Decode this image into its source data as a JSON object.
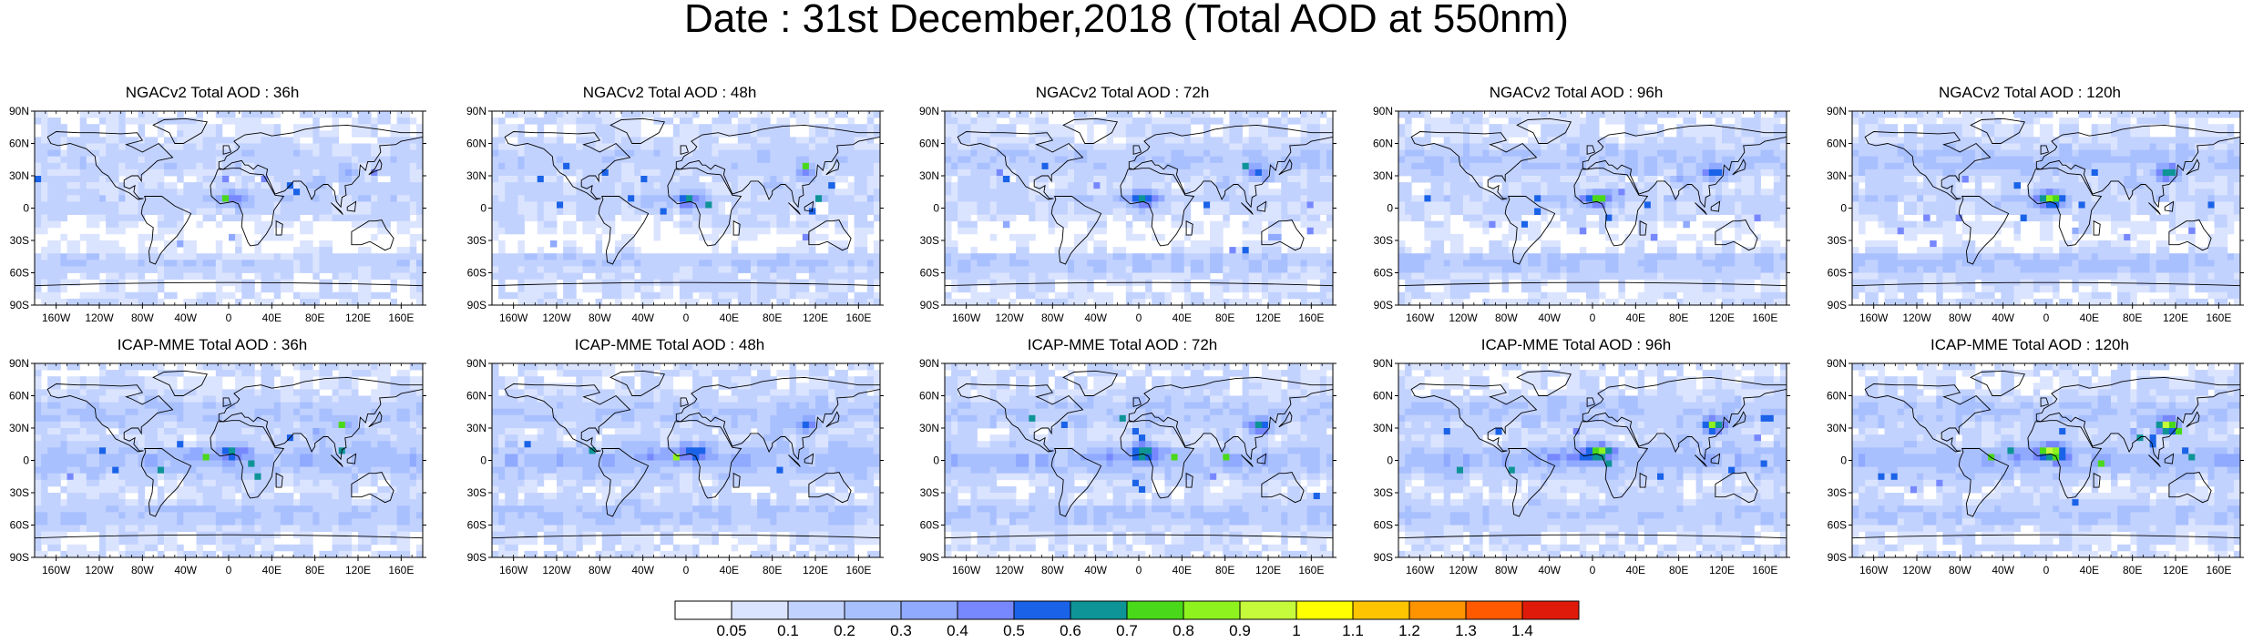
{
  "title": "Date : 31st December,2018 (Total AOD at 550nm)",
  "panels": [
    {
      "title": "NGACv2 Total AOD : 36h",
      "model": "NGACv2",
      "lead_hours": 36
    },
    {
      "title": "NGACv2 Total AOD : 48h",
      "model": "NGACv2",
      "lead_hours": 48
    },
    {
      "title": "NGACv2 Total AOD : 72h",
      "model": "NGACv2",
      "lead_hours": 72
    },
    {
      "title": "NGACv2 Total AOD : 96h",
      "model": "NGACv2",
      "lead_hours": 96
    },
    {
      "title": "NGACv2 Total AOD : 120h",
      "model": "NGACv2",
      "lead_hours": 120
    },
    {
      "title": "ICAP-MME Total AOD : 36h",
      "model": "ICAP-MME",
      "lead_hours": 36
    },
    {
      "title": "ICAP-MME Total AOD : 48h",
      "model": "ICAP-MME",
      "lead_hours": 48
    },
    {
      "title": "ICAP-MME Total AOD : 72h",
      "model": "ICAP-MME",
      "lead_hours": 72
    },
    {
      "title": "ICAP-MME Total AOD : 96h",
      "model": "ICAP-MME",
      "lead_hours": 96
    },
    {
      "title": "ICAP-MME Total AOD : 120h",
      "model": "ICAP-MME",
      "lead_hours": 120
    }
  ],
  "lat_labels": [
    "90N",
    "60N",
    "30N",
    "0",
    "30S",
    "60S",
    "90S"
  ],
  "lon_labels": [
    "160W",
    "120W",
    "80W",
    "40W",
    "0",
    "40E",
    "80E",
    "120E",
    "160E"
  ],
  "colorbar": {
    "labels": [
      "0.05",
      "0.1",
      "0.2",
      "0.3",
      "0.4",
      "0.5",
      "0.6",
      "0.7",
      "0.8",
      "0.9",
      "1",
      "1.1",
      "1.2",
      "1.3",
      "1.4"
    ],
    "colors": [
      "#ffffff",
      "#dbe4ff",
      "#c2d2ff",
      "#a9c0ff",
      "#90aaff",
      "#7788ff",
      "#1a63e8",
      "#0e9496",
      "#4ad91a",
      "#8ef21f",
      "#c6fb3b",
      "#ffff00",
      "#ffc400",
      "#ff9300",
      "#ff5a00",
      "#e01a0a"
    ]
  }
}
